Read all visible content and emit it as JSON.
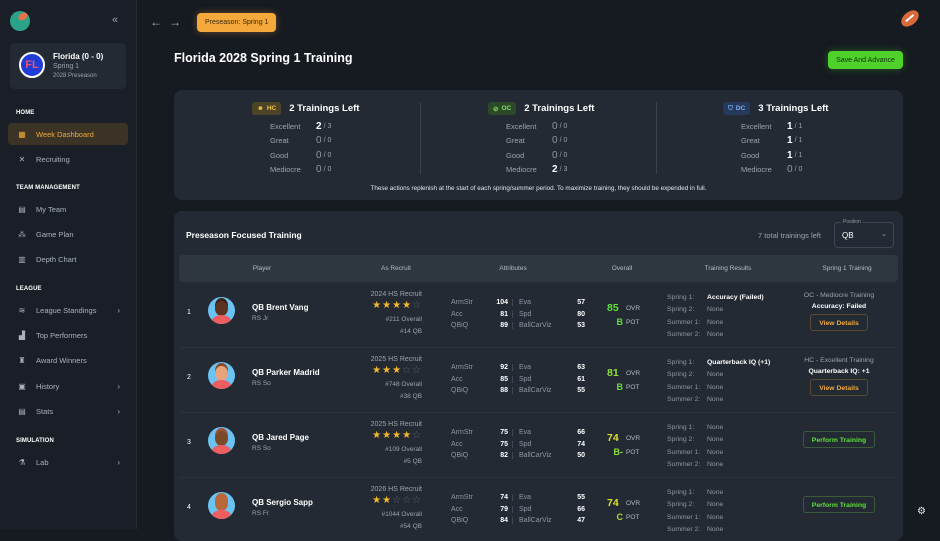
{
  "sidebar": {
    "logo_icon": "football-logo-icon",
    "collapse_icon": "«",
    "team": {
      "abbr": "FL",
      "name": "Florida (0 - 0)",
      "period": "Spring 1",
      "season": "2028 Preseason"
    },
    "sections": [
      {
        "label": "HOME"
      },
      {
        "label": "TEAM MANAGEMENT"
      },
      {
        "label": "LEAGUE"
      },
      {
        "label": "SIMULATION"
      }
    ],
    "items": [
      {
        "label": "Week Dashboard",
        "icon": "▦",
        "active": true
      },
      {
        "label": "Recruiting",
        "icon": "✕"
      },
      {
        "label": "My Team",
        "icon": "▤"
      },
      {
        "label": "Game Plan",
        "icon": "⁂"
      },
      {
        "label": "Depth Chart",
        "icon": "▥"
      },
      {
        "label": "League Standings",
        "icon": "≋",
        "chevron": "›"
      },
      {
        "label": "Top Performers",
        "icon": "▟"
      },
      {
        "label": "Award Winners",
        "icon": "♜"
      },
      {
        "label": "History",
        "icon": "▣",
        "chevron": "›"
      },
      {
        "label": "Stats",
        "icon": "▤",
        "chevron": "›"
      },
      {
        "label": "Lab",
        "icon": "⚗",
        "chevron": "›"
      }
    ]
  },
  "header": {
    "back_icon": "←",
    "forward_icon": "→",
    "period_badge": "Preseason: Spring 1",
    "page_title": "Florida 2028 Spring 1 Training",
    "save_button": "Save And Advance",
    "settings_icon": "⚙"
  },
  "summary": {
    "coaches": [
      {
        "role": "HC",
        "icon": "☻",
        "left": "2 Trainings Left",
        "rows": [
          {
            "label": "Excellent",
            "val": "2",
            "den": "/ 3"
          },
          {
            "label": "Great",
            "val": "0",
            "den": "/ 0"
          },
          {
            "label": "Good",
            "val": "0",
            "den": "/ 0"
          },
          {
            "label": "Mediocre",
            "val": "0",
            "den": "/ 0"
          }
        ]
      },
      {
        "role": "OC",
        "icon": "⊘",
        "left": "2 Trainings Left",
        "rows": [
          {
            "label": "Excellent",
            "val": "0",
            "den": "/ 0"
          },
          {
            "label": "Great",
            "val": "0",
            "den": "/ 0"
          },
          {
            "label": "Good",
            "val": "0",
            "den": "/ 0"
          },
          {
            "label": "Mediocre",
            "val": "2",
            "den": "/ 3"
          }
        ]
      },
      {
        "role": "DC",
        "icon": "⛉",
        "left": "3 Trainings Left",
        "rows": [
          {
            "label": "Excellent",
            "val": "1",
            "den": "/ 1"
          },
          {
            "label": "Great",
            "val": "1",
            "den": "/ 1"
          },
          {
            "label": "Good",
            "val": "1",
            "den": "/ 1"
          },
          {
            "label": "Mediocre",
            "val": "0",
            "den": "/ 0"
          }
        ]
      }
    ],
    "note": "These actions replenish at the start of each spring/summer period. To maximize training, they should be expended in full."
  },
  "training": {
    "title": "Preseason Focused Training",
    "total_left": "7 total trainings left",
    "position_label": "Position",
    "position_value": "QB",
    "columns": [
      "Player",
      "As Recruit",
      "Attributes",
      "Overall",
      "Training Results",
      "Spring 1 Training"
    ],
    "players": [
      {
        "rank": "1",
        "name": "QB Brent Vang",
        "class": "RS Jr",
        "recruit_year": "2024 HS Recruit",
        "stars": "★★★★",
        "empty_stars": "☆",
        "recruit_overall": "#211 Overall",
        "recruit_pos": "#14 QB",
        "attrs": [
          {
            "n": "ArmStr",
            "v": "104",
            "n2": "Eva",
            "v2": "57"
          },
          {
            "n": "Acc",
            "v": "81",
            "n2": "Spd",
            "v2": "80"
          },
          {
            "n": "QBiQ",
            "v": "89",
            "n2": "BallCarViz",
            "v2": "53"
          }
        ],
        "ovr": "85",
        "ovr_label": "OVR",
        "ovr_color": "#5fe03a",
        "pot": "B",
        "pot_label": "POT",
        "pot_color": "#5fe03a",
        "results": [
          {
            "l": "Spring 1:",
            "v": "Accuracy (Failed)",
            "hi": true
          },
          {
            "l": "Spring 2:",
            "v": "None"
          },
          {
            "l": "Summer 1:",
            "v": "None"
          },
          {
            "l": "Summer 2:",
            "v": "None"
          }
        ],
        "sp_title": "OC - Mediocre Training",
        "sp_result": "Accuracy: Failed",
        "action": "View Details",
        "action_type": "view",
        "face": "#5a3421",
        "hair": "#3a2215"
      },
      {
        "rank": "2",
        "name": "QB Parker Madrid",
        "class": "RS So",
        "recruit_year": "2025 HS Recruit",
        "stars": "★★★",
        "empty_stars": "☆☆",
        "recruit_overall": "#748 Overall",
        "recruit_pos": "#38 QB",
        "attrs": [
          {
            "n": "ArmStr",
            "v": "92",
            "n2": "Eva",
            "v2": "63"
          },
          {
            "n": "Acc",
            "v": "85",
            "n2": "Spd",
            "v2": "61"
          },
          {
            "n": "QBiQ",
            "v": "88",
            "n2": "BallCarViz",
            "v2": "55"
          }
        ],
        "ovr": "81",
        "ovr_label": "OVR",
        "ovr_color": "#8ee03a",
        "pot": "B",
        "pot_label": "POT",
        "pot_color": "#5fe03a",
        "results": [
          {
            "l": "Spring 1:",
            "v": "Quarterback IQ (+1)",
            "hi": true
          },
          {
            "l": "Spring 2:",
            "v": "None"
          },
          {
            "l": "Summer 1:",
            "v": "None"
          },
          {
            "l": "Summer 2:",
            "v": "None"
          }
        ],
        "sp_title": "HC - Excellent Training",
        "sp_result": "Quarterback IQ: +1",
        "action": "View Details",
        "action_type": "view",
        "face": "#e8a27c",
        "hair": "#8a4a2a"
      },
      {
        "rank": "3",
        "name": "QB Jared Page",
        "class": "RS So",
        "recruit_year": "2025 HS Recruit",
        "stars": "★★★★",
        "empty_stars": "☆",
        "recruit_overall": "#109 Overall",
        "recruit_pos": "#5 QB",
        "attrs": [
          {
            "n": "ArmStr",
            "v": "75",
            "n2": "Eva",
            "v2": "66"
          },
          {
            "n": "Acc",
            "v": "75",
            "n2": "Spd",
            "v2": "74"
          },
          {
            "n": "QBiQ",
            "v": "82",
            "n2": "BallCarViz",
            "v2": "50"
          }
        ],
        "ovr": "74",
        "ovr_label": "OVR",
        "ovr_color": "#d8e02a",
        "pot": "B-",
        "pot_label": "POT",
        "pot_color": "#8ee03a",
        "results": [
          {
            "l": "Spring 1:",
            "v": "None"
          },
          {
            "l": "Spring 2:",
            "v": "None"
          },
          {
            "l": "Summer 1:",
            "v": "None"
          },
          {
            "l": "Summer 2:",
            "v": "None"
          }
        ],
        "sp_title": "",
        "sp_result": "",
        "action": "Perform Training",
        "action_type": "perform",
        "face": "#7a4a2a",
        "hair": "#a05030"
      },
      {
        "rank": "4",
        "name": "QB Sergio Sapp",
        "class": "RS Fr",
        "recruit_year": "2026 HS Recruit",
        "stars": "★★",
        "empty_stars": "☆☆☆",
        "recruit_overall": "#1044 Overall",
        "recruit_pos": "#54 QB",
        "attrs": [
          {
            "n": "ArmStr",
            "v": "74",
            "n2": "Eva",
            "v2": "55"
          },
          {
            "n": "Acc",
            "v": "79",
            "n2": "Spd",
            "v2": "66"
          },
          {
            "n": "QBiQ",
            "v": "84",
            "n2": "BallCarViz",
            "v2": "47"
          }
        ],
        "ovr": "74",
        "ovr_label": "OVR",
        "ovr_color": "#d8e02a",
        "pot": "C",
        "pot_label": "POT",
        "pot_color": "#b8d03a",
        "results": [
          {
            "l": "Spring 1:",
            "v": "None"
          },
          {
            "l": "Spring 2:",
            "v": "None"
          },
          {
            "l": "Summer 1:",
            "v": "None"
          },
          {
            "l": "Summer 2:",
            "v": "None"
          }
        ],
        "sp_title": "",
        "sp_result": "",
        "action": "Perform Training",
        "action_type": "perform",
        "face": "#b8683a",
        "hair": "#b8683a"
      }
    ]
  }
}
